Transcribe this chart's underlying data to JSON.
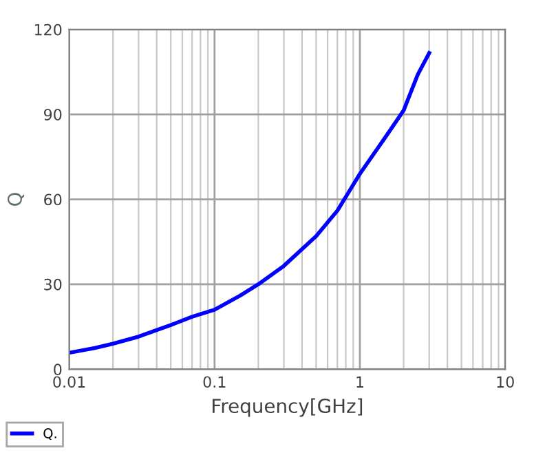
{
  "chart_data": {
    "type": "line",
    "xlabel": "Frequency[GHz]",
    "ylabel": "Q",
    "log": "x",
    "x": [
      0.01,
      0.015,
      0.02,
      0.03,
      0.05,
      0.07,
      0.1,
      0.15,
      0.2,
      0.3,
      0.5,
      0.7,
      1,
      1.5,
      2,
      2.5,
      3
    ],
    "series": [
      {
        "name": "Q.",
        "color": "#0000ff",
        "values": [
          5.8,
          7.5,
          9,
          11.5,
          15.6,
          18.5,
          21,
          26,
          30,
          36.5,
          47,
          56,
          69,
          82,
          91.4,
          104,
          111.7
        ]
      }
    ],
    "xlim": [
      0.01,
      10
    ],
    "xticks": [
      0.01,
      0.1,
      1,
      10
    ],
    "ylim": [
      0,
      120
    ],
    "yticks": [
      0,
      30,
      60,
      90,
      120
    ],
    "grid": true,
    "legend": "bottom"
  }
}
